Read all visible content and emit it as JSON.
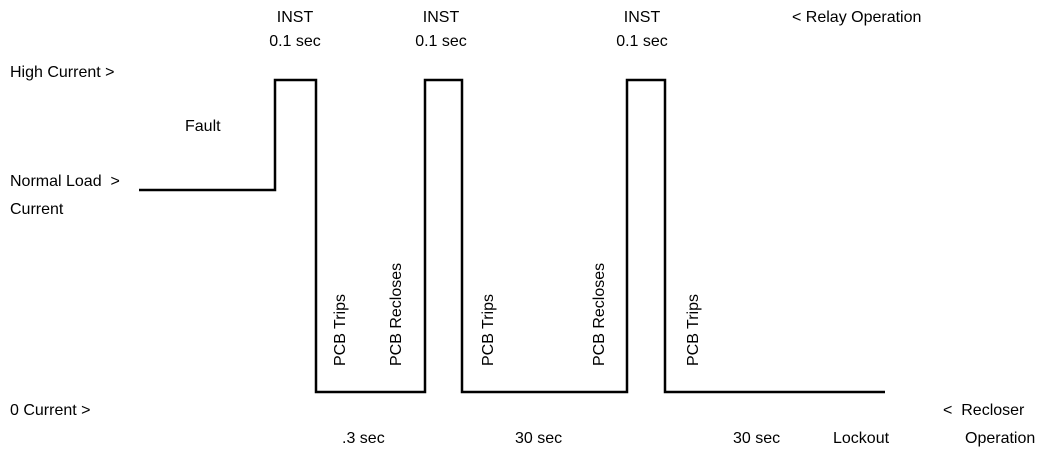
{
  "top_labels": [
    {
      "line1": "INST",
      "line2": "0.1 sec"
    },
    {
      "line1": "INST",
      "line2": "0.1 sec"
    },
    {
      "line1": "INST",
      "line2": "0.1 sec"
    }
  ],
  "relay_operation": "< Relay Operation",
  "levels": {
    "high_current": "High Current >",
    "fault": "Fault",
    "normal_load_line1": "Normal Load  >",
    "normal_load_line2": "Current",
    "zero_current": "0 Current >"
  },
  "events": [
    "PCB Trips",
    "PCB Recloses",
    "PCB Trips",
    "PCB Recloses",
    "PCB Trips"
  ],
  "bottom_labels": {
    "interval1": ".3 sec",
    "interval2": "30 sec",
    "interval3": "30 sec",
    "lockout": "Lockout",
    "recloser_line1": "<  Recloser",
    "recloser_line2": "Operation"
  },
  "colors": {
    "line": "#000000",
    "text": "#000000",
    "background": "#ffffff"
  }
}
